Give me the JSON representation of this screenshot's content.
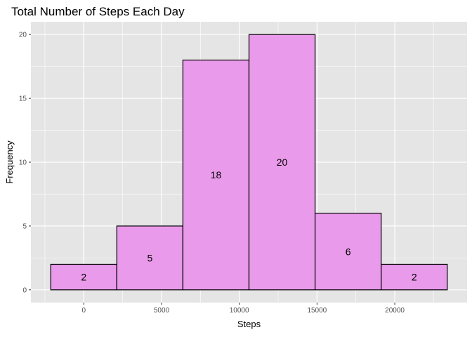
{
  "chart_data": {
    "type": "bar",
    "title": "Total Number of Steps Each Day",
    "xlabel": "Steps",
    "ylabel": "Frequency",
    "bins": [
      {
        "start": -2125,
        "end": 2125,
        "count": 2,
        "label": "2"
      },
      {
        "start": 2125,
        "end": 6375,
        "count": 5,
        "label": "5"
      },
      {
        "start": 6375,
        "end": 10625,
        "count": 18,
        "label": "18"
      },
      {
        "start": 10625,
        "end": 14875,
        "count": 20,
        "label": "20"
      },
      {
        "start": 14875,
        "end": 19125,
        "count": 6,
        "label": "6"
      },
      {
        "start": 19125,
        "end": 23375,
        "count": 2,
        "label": "2"
      }
    ],
    "xticks": [
      0,
      5000,
      10000,
      15000,
      20000
    ],
    "xtick_labels": [
      "0",
      "5000",
      "10000",
      "15000",
      "20000"
    ],
    "yticks": [
      0,
      5,
      10,
      15,
      20
    ],
    "ytick_labels": [
      "0",
      "5",
      "10",
      "15",
      "20"
    ],
    "xlim": [
      -3400,
      24650
    ],
    "ylim": [
      -1,
      21
    ],
    "grid": true,
    "colors": {
      "bar_fill": "#e99aea",
      "bar_stroke": "#000000",
      "panel_background": "#e5e5e5",
      "grid": "#ffffff",
      "tick_text": "#4d4d4d"
    }
  }
}
